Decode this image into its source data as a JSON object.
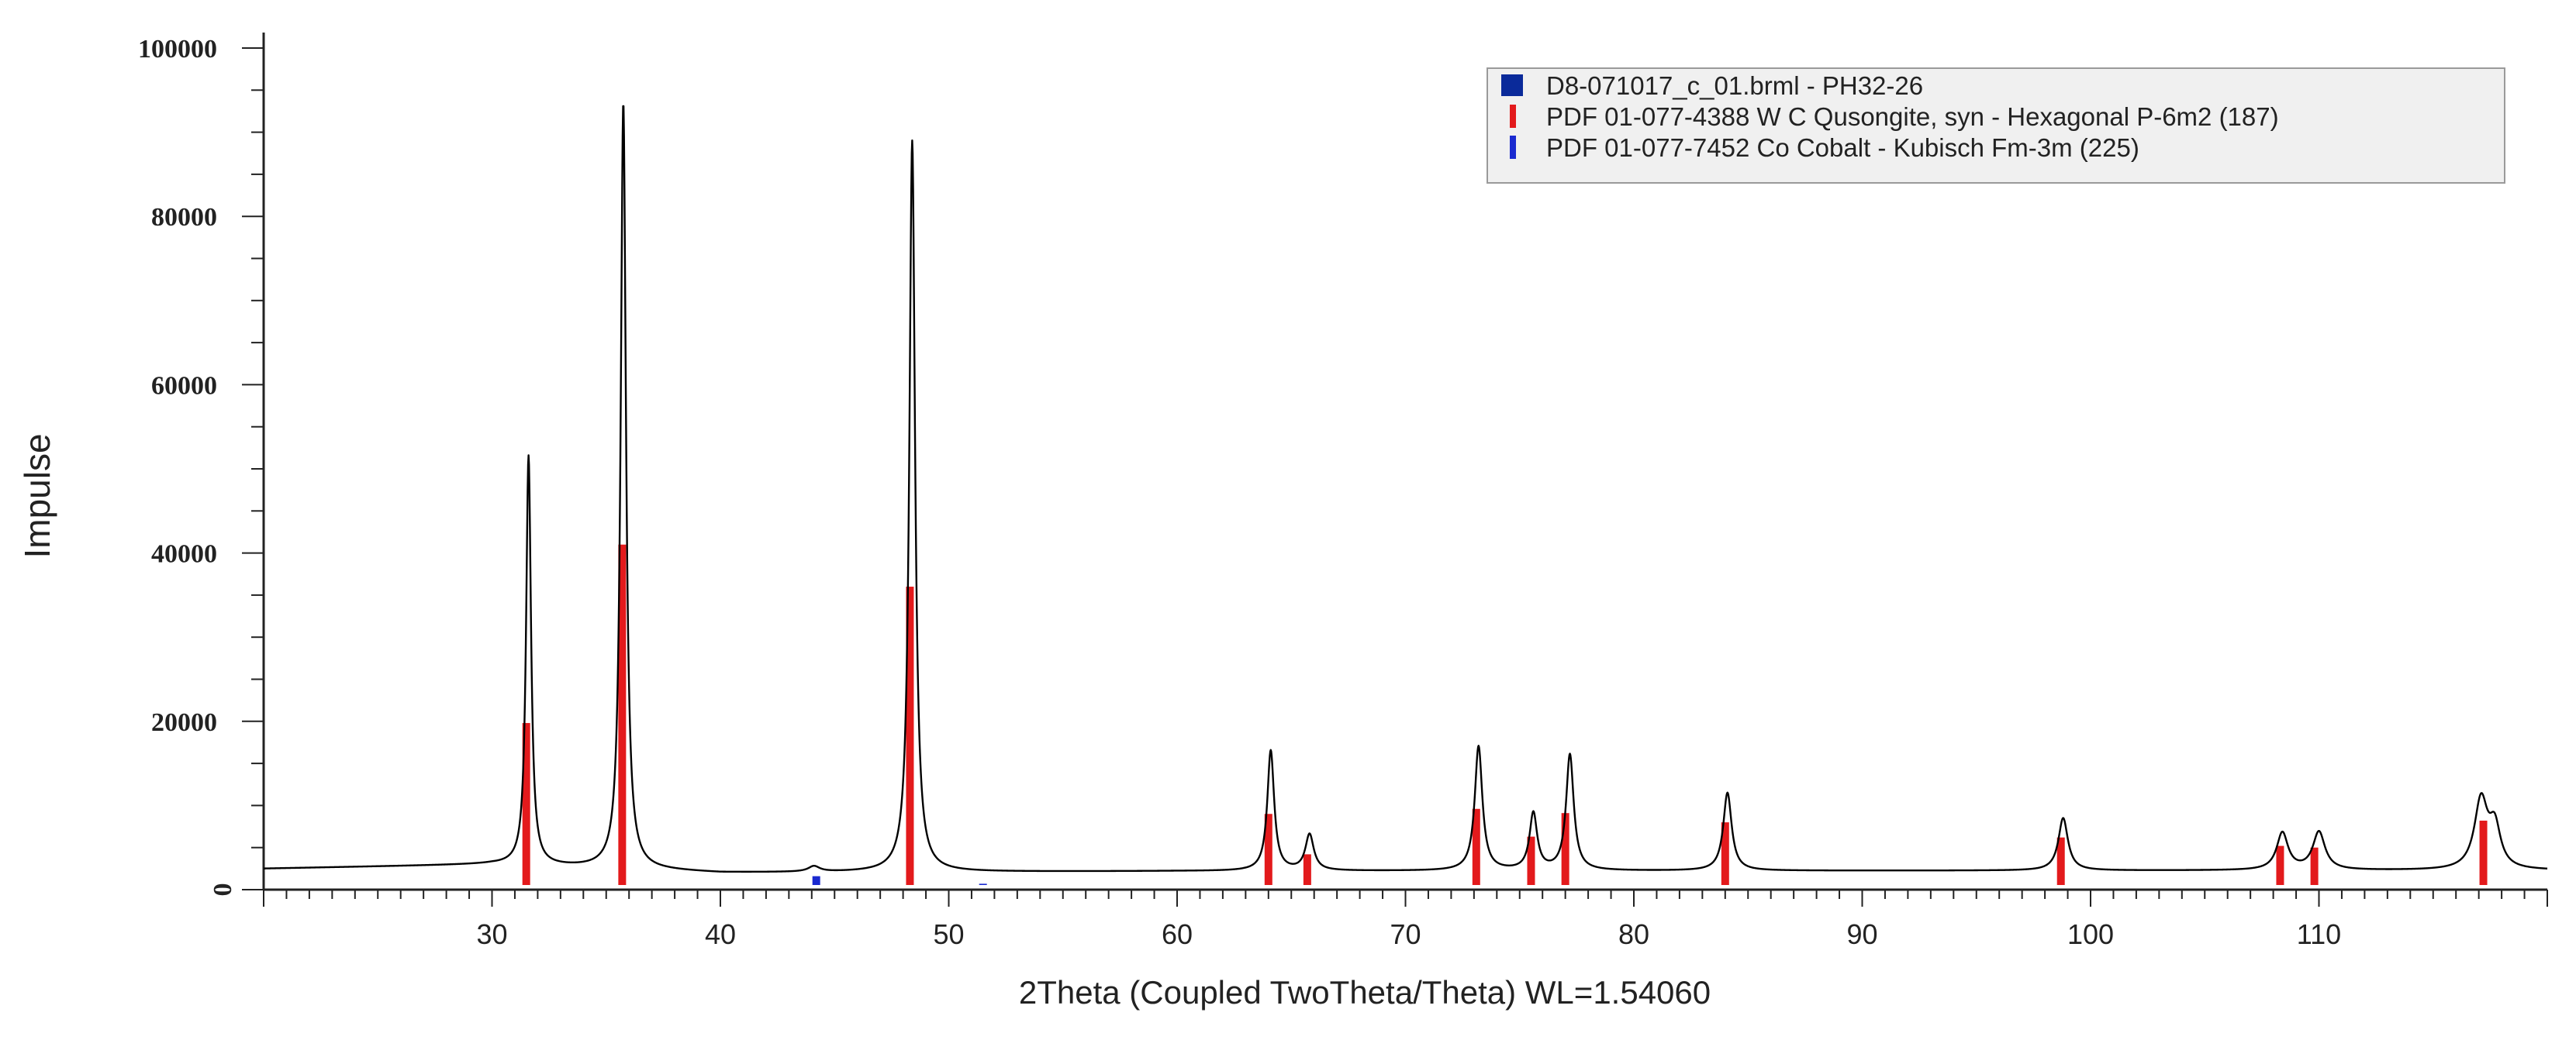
{
  "chart_data": {
    "type": "line",
    "xlabel": "2Theta (Coupled TwoTheta/Theta) WL=1.54060",
    "ylabel": "Impulse",
    "xlim": [
      20,
      120
    ],
    "ylim": [
      0,
      100000
    ],
    "x_ticks": [
      30,
      40,
      50,
      60,
      70,
      80,
      90,
      100,
      110
    ],
    "x_tick_labels": [
      "30",
      "40",
      "50",
      "60",
      "70",
      "80",
      "90",
      "100",
      "110"
    ],
    "y_ticks": [
      0,
      20000,
      40000,
      60000,
      80000,
      100000
    ],
    "y_tick_labels": [
      "0",
      "20000",
      "40000",
      "60000",
      "80000",
      "100000"
    ],
    "grid": false,
    "legend_position": "top-right",
    "legend": [
      {
        "label": "D8-071017_c_01.brml - PH32-26",
        "color": "#0a2a9a",
        "marker": "square"
      },
      {
        "label": "PDF 01-077-4388 W C Qusongite, syn - Hexagonal P-6m2 (187)",
        "color": "#e31a1c",
        "marker": "bar"
      },
      {
        "label": "PDF 01-077-7452 Co Cobalt - Kubisch Fm-3m (225)",
        "color": "#1a2ad0",
        "marker": "bar"
      }
    ],
    "series": [
      {
        "name": "D8-071017_c_01.brml - PH32-26",
        "color": "#000000",
        "baseline": 2500,
        "baseline_drift": [
          [
            20,
            2500
          ],
          [
            30,
            3000
          ],
          [
            40,
            2000
          ],
          [
            60,
            2200
          ],
          [
            120,
            2300
          ]
        ],
        "peaks": [
          {
            "x": 31.6,
            "y": 51500,
            "width": 0.13
          },
          {
            "x": 35.75,
            "y": 93500,
            "width": 0.14
          },
          {
            "x": 44.1,
            "y": 2700,
            "width": 0.3
          },
          {
            "x": 48.4,
            "y": 89000,
            "width": 0.15
          },
          {
            "x": 64.1,
            "y": 16500,
            "width": 0.18
          },
          {
            "x": 65.8,
            "y": 6500,
            "width": 0.22
          },
          {
            "x": 73.2,
            "y": 17000,
            "width": 0.2
          },
          {
            "x": 75.6,
            "y": 9000,
            "width": 0.2
          },
          {
            "x": 77.2,
            "y": 16000,
            "width": 0.2
          },
          {
            "x": 84.1,
            "y": 11500,
            "width": 0.22
          },
          {
            "x": 98.8,
            "y": 8500,
            "width": 0.25
          },
          {
            "x": 108.4,
            "y": 6700,
            "width": 0.3
          },
          {
            "x": 110.0,
            "y": 6800,
            "width": 0.32
          },
          {
            "x": 117.1,
            "y": 10500,
            "width": 0.35
          },
          {
            "x": 117.7,
            "y": 7000,
            "width": 0.3
          }
        ]
      }
    ],
    "reference_lines": [
      {
        "name": "PDF 01-077-4388 W C Qusongite, syn - Hexagonal P-6m2 (187)",
        "color": "#e31a1c",
        "x": [
          31.5,
          35.7,
          48.3,
          64.0,
          65.7,
          73.1,
          75.5,
          77.0,
          84.0,
          98.7,
          108.3,
          109.8,
          117.2
        ],
        "y": [
          19800,
          41000,
          36000,
          9000,
          4200,
          9600,
          6300,
          9100,
          8000,
          6200,
          5200,
          5000,
          8200
        ]
      },
      {
        "name": "PDF 01-077-7452 Co Cobalt - Kubisch Fm-3m (225)",
        "color": "#1a2ad0",
        "x": [
          44.2,
          51.5
        ],
        "y": [
          1600,
          700
        ]
      }
    ]
  }
}
